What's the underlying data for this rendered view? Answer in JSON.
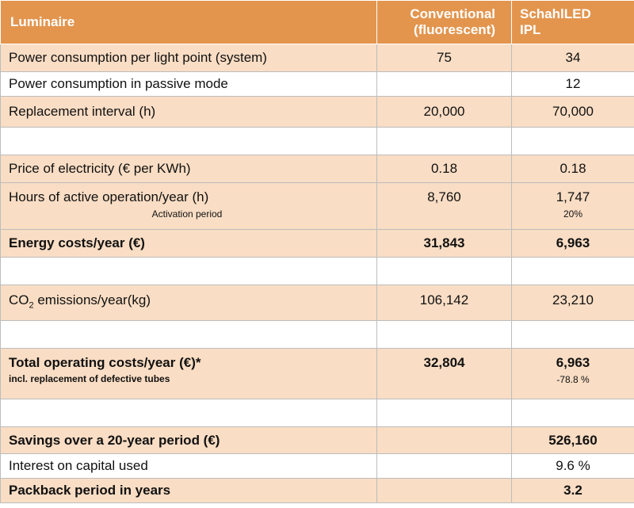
{
  "header": {
    "luminaire": "Luminaire",
    "conventional_line1": "Conventional",
    "conventional_line2": "(fluorescent)",
    "schahl_line1": "SchahlLED",
    "schahl_line2": "IPL"
  },
  "rows": {
    "power_system": {
      "label": "Power consumption per light point (system)",
      "conventional": "75",
      "led": "34"
    },
    "power_passive": {
      "label": "Power consumption in passive mode",
      "conventional": "",
      "led": "12"
    },
    "replacement": {
      "label": "Replacement interval (h)",
      "conventional": "20,000",
      "led": "70,000"
    },
    "price": {
      "label": "Price of electricity (€ per KWh)",
      "conventional": "0.18",
      "led": "0.18"
    },
    "hours": {
      "label": "Hours of active operation/year (h)",
      "conventional": "8,760",
      "led": "1,747",
      "sub_label": "Activation period",
      "led_sub": "20%"
    },
    "energy": {
      "label": "Energy costs/year (€)",
      "conventional": "31,843",
      "led": "6,963"
    },
    "co2": {
      "label_prefix": "CO",
      "label_subscript": "2",
      "label_suffix": " emissions/year(kg)",
      "conventional": "106,142",
      "led": "23,210"
    },
    "total": {
      "label": "Total operating costs/year (€)*",
      "sub_label": "incl. replacement of defective tubes",
      "conventional": "32,804",
      "led": "6,963",
      "led_sub": "-78.8 %"
    },
    "savings": {
      "label": "Savings over a 20-year period (€)",
      "conventional": "",
      "led": "526,160"
    },
    "interest": {
      "label": "Interest on capital used",
      "conventional": "",
      "led": "9.6 %"
    },
    "payback": {
      "label": "Packback period in years",
      "conventional": "",
      "led": "3.2"
    }
  },
  "colors": {
    "header_bg": "#e3954e",
    "shade_bg": "#f9ddc4",
    "border": "#bdbdbd"
  }
}
